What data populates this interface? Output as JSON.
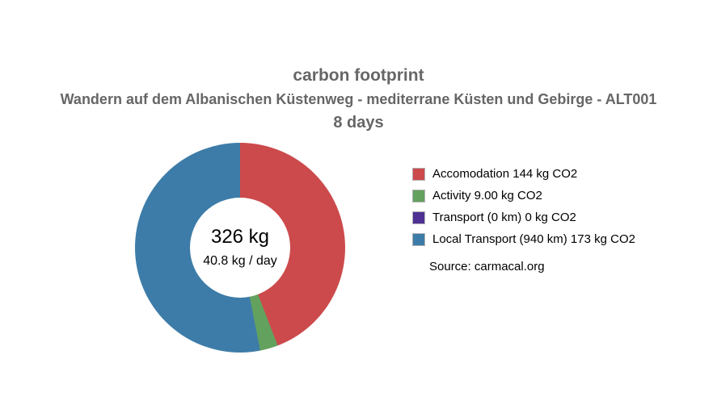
{
  "header": {
    "title": "carbon footprint",
    "subtitle": "Wandern auf dem Albanischen Küstenweg - mediterrane Küsten und Gebirge - ALT001",
    "duration": "8 days"
  },
  "chart_data": {
    "type": "pie",
    "title": "carbon footprint",
    "subtitle": "Wandern auf dem Albanischen Küstenweg - mediterrane Küsten und Gebirge - ALT001",
    "duration_days": 8,
    "unit": "kg CO2",
    "total_kg": 326,
    "per_day_kg": 40.8,
    "total_label": "326 kg",
    "per_day_label": "40.8 kg / day",
    "start_angle": "top",
    "direction": "clockwise",
    "donut_inner_radius_pct": 48,
    "legend_position": "right",
    "slices": [
      {
        "name": "Accomodation",
        "label": "Accomodation 144 kg CO2",
        "value": 144,
        "color": "#cc4a4c"
      },
      {
        "name": "Activity",
        "label": "Activity 9.00 kg CO2",
        "value": 9,
        "color": "#63a15f"
      },
      {
        "name": "Transport",
        "label": "Transport (0 km) 0 kg CO2",
        "value": 0,
        "color": "#4e3192"
      },
      {
        "name": "Local Transport",
        "label": "Local Transport (940 km) 173 kg CO2",
        "value": 173,
        "color": "#3d7ca8"
      }
    ]
  },
  "source": "Source: carmacal.org",
  "colors": {
    "title_text": "#666666",
    "legend_text": "#000000",
    "background": "#ffffff"
  }
}
